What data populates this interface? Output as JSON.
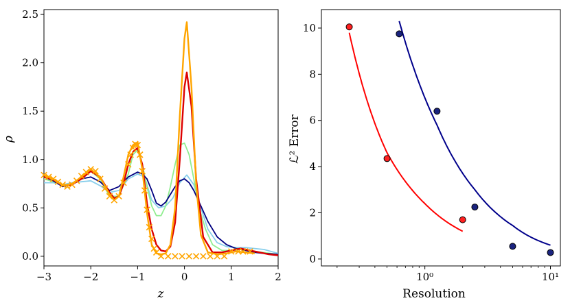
{
  "chart_data": [
    {
      "type": "line",
      "xlabel": "z",
      "ylabel": "ρ",
      "xlim": [
        -3,
        2
      ],
      "ylim": [
        -0.1,
        2.55
      ],
      "xticks": [
        "−3",
        "−2",
        "−1",
        "0",
        "1",
        "2"
      ],
      "yticks": [
        "0.0",
        "0.5",
        "1.0",
        "1.5",
        "2.0",
        "2.5"
      ],
      "xtick_values": [
        -3,
        -2,
        -1,
        0,
        1,
        2
      ],
      "ytick_values": [
        0.0,
        0.5,
        1.0,
        1.5,
        2.0,
        2.5
      ],
      "series": [
        {
          "name": "light-blue",
          "color": "#87ceeb",
          "x": [
            -3,
            -2.8,
            -2.6,
            -2.4,
            -2.2,
            -2.0,
            -1.8,
            -1.6,
            -1.4,
            -1.2,
            -1.0,
            -0.85,
            -0.7,
            -0.55,
            -0.4,
            -0.25,
            -0.1,
            0.05,
            0.2,
            0.35,
            0.5,
            0.7,
            0.9,
            1.1,
            1.3,
            1.5,
            1.7,
            2.0
          ],
          "y": [
            0.76,
            0.76,
            0.74,
            0.76,
            0.77,
            0.78,
            0.73,
            0.66,
            0.68,
            0.8,
            0.85,
            0.82,
            0.58,
            0.5,
            0.52,
            0.6,
            0.76,
            0.84,
            0.74,
            0.5,
            0.28,
            0.14,
            0.1,
            0.09,
            0.09,
            0.08,
            0.07,
            0.03
          ]
        },
        {
          "name": "light-green",
          "color": "#90ee90",
          "x": [
            -3,
            -2.8,
            -2.6,
            -2.4,
            -2.2,
            -2.0,
            -1.8,
            -1.6,
            -1.4,
            -1.2,
            -1.1,
            -1.0,
            -0.9,
            -0.8,
            -0.7,
            -0.6,
            -0.5,
            -0.4,
            -0.3,
            -0.2,
            -0.1,
            0.0,
            0.1,
            0.2,
            0.3,
            0.45,
            0.6,
            0.8,
            1.0,
            1.2,
            1.5,
            2.0
          ],
          "y": [
            0.8,
            0.77,
            0.73,
            0.75,
            0.82,
            0.88,
            0.8,
            0.62,
            0.62,
            0.85,
            1.05,
            1.1,
            0.95,
            0.72,
            0.52,
            0.42,
            0.42,
            0.52,
            0.72,
            0.95,
            1.15,
            1.17,
            1.05,
            0.8,
            0.52,
            0.28,
            0.12,
            0.06,
            0.06,
            0.07,
            0.05,
            0.02
          ]
        },
        {
          "name": "navy",
          "color": "#000080",
          "x": [
            -3,
            -2.8,
            -2.6,
            -2.4,
            -2.2,
            -2.0,
            -1.8,
            -1.6,
            -1.4,
            -1.2,
            -1.0,
            -0.9,
            -0.8,
            -0.7,
            -0.6,
            -0.5,
            -0.4,
            -0.3,
            -0.2,
            -0.1,
            0.0,
            0.1,
            0.2,
            0.35,
            0.5,
            0.7,
            0.9,
            1.1,
            1.3,
            1.5,
            1.7,
            2.0
          ],
          "y": [
            0.82,
            0.78,
            0.72,
            0.74,
            0.8,
            0.82,
            0.77,
            0.68,
            0.72,
            0.82,
            0.87,
            0.85,
            0.8,
            0.68,
            0.55,
            0.52,
            0.56,
            0.64,
            0.72,
            0.78,
            0.8,
            0.76,
            0.68,
            0.52,
            0.36,
            0.2,
            0.12,
            0.08,
            0.06,
            0.04,
            0.03,
            0.02
          ]
        },
        {
          "name": "red",
          "color": "#dd0000",
          "x": [
            -3,
            -2.8,
            -2.6,
            -2.4,
            -2.2,
            -2.0,
            -1.8,
            -1.6,
            -1.5,
            -1.4,
            -1.3,
            -1.2,
            -1.1,
            -1.0,
            -0.9,
            -0.8,
            -0.7,
            -0.6,
            -0.5,
            -0.4,
            -0.3,
            -0.2,
            -0.1,
            0.0,
            0.05,
            0.15,
            0.25,
            0.4,
            0.6,
            0.8,
            1.0,
            1.2,
            1.4,
            1.6,
            1.8,
            2.0
          ],
          "y": [
            0.82,
            0.79,
            0.73,
            0.74,
            0.8,
            0.88,
            0.82,
            0.66,
            0.6,
            0.62,
            0.75,
            0.95,
            1.08,
            1.12,
            0.95,
            0.55,
            0.28,
            0.12,
            0.06,
            0.05,
            0.1,
            0.35,
            1.0,
            1.75,
            1.9,
            1.55,
            0.8,
            0.2,
            0.04,
            0.04,
            0.06,
            0.08,
            0.06,
            0.04,
            0.02,
            0.01
          ]
        },
        {
          "name": "orange",
          "color": "#ffa500",
          "x": [
            -3,
            -2.8,
            -2.6,
            -2.4,
            -2.2,
            -2.0,
            -1.8,
            -1.6,
            -1.5,
            -1.4,
            -1.3,
            -1.2,
            -1.1,
            -1.0,
            -0.9,
            -0.8,
            -0.7,
            -0.6,
            -0.5,
            -0.4,
            -0.3,
            -0.2,
            -0.1,
            0.0,
            0.05,
            0.15,
            0.25,
            0.35,
            0.5,
            0.7,
            0.9,
            1.1,
            1.3,
            1.5
          ],
          "y": [
            0.84,
            0.8,
            0.73,
            0.75,
            0.82,
            0.9,
            0.82,
            0.64,
            0.58,
            0.62,
            0.82,
            1.05,
            1.15,
            1.18,
            0.9,
            0.45,
            0.12,
            0.03,
            0.02,
            0.03,
            0.12,
            0.5,
            1.45,
            2.25,
            2.42,
            1.75,
            0.75,
            0.22,
            0.04,
            0.02,
            0.03,
            0.05,
            0.04,
            0.03
          ]
        },
        {
          "name": "orange-x-markers",
          "color": "#ffa500",
          "marker": "x",
          "x": [
            -3.0,
            -2.9,
            -2.8,
            -2.7,
            -2.6,
            -2.5,
            -2.4,
            -2.3,
            -2.2,
            -2.1,
            -2.0,
            -1.9,
            -1.8,
            -1.7,
            -1.6,
            -1.5,
            -1.4,
            -1.3,
            -1.2,
            -1.15,
            -1.1,
            -1.05,
            -1.0,
            -0.95,
            -0.9,
            -0.85,
            -0.8,
            -0.75,
            -0.7,
            -0.65,
            -0.6,
            -0.5,
            -0.35,
            -0.2,
            -0.05,
            0.1,
            0.25,
            0.4,
            0.55,
            0.7,
            0.85,
            1.0,
            1.15,
            1.25,
            1.4
          ],
          "y": [
            0.84,
            0.82,
            0.8,
            0.77,
            0.74,
            0.72,
            0.74,
            0.78,
            0.83,
            0.87,
            0.9,
            0.88,
            0.8,
            0.7,
            0.62,
            0.58,
            0.62,
            0.76,
            0.95,
            1.05,
            1.12,
            1.16,
            1.15,
            1.05,
            0.88,
            0.68,
            0.48,
            0.3,
            0.18,
            0.08,
            0.04,
            0.0,
            0.0,
            0.0,
            0.0,
            0.0,
            0.0,
            0.0,
            0.0,
            0.0,
            0.0,
            0.05,
            0.05,
            0.05,
            0.05
          ]
        }
      ]
    },
    {
      "type": "scatter",
      "xscale": "log",
      "xlabel": "Resolution",
      "ylabel": "ℒ² Error",
      "xlim": [
        0.15,
        12
      ],
      "ylim": [
        -0.3,
        10.8
      ],
      "xticks": [
        "10⁰",
        "10¹"
      ],
      "xtick_values": [
        1,
        10
      ],
      "yticks": [
        "0",
        "2",
        "4",
        "6",
        "8",
        "10"
      ],
      "ytick_values": [
        0,
        2,
        4,
        6,
        8,
        10
      ],
      "series": [
        {
          "name": "red-points",
          "color": "#ff2020",
          "x": [
            0.25,
            0.5,
            2.0
          ],
          "y": [
            10.05,
            4.35,
            1.7
          ]
        },
        {
          "name": "navy-points",
          "color": "#1a237e",
          "x": [
            0.625,
            1.25,
            2.5,
            5.0,
            10.0
          ],
          "y": [
            9.75,
            6.4,
            2.25,
            0.55,
            0.28
          ]
        }
      ],
      "fits": [
        {
          "name": "red-fit",
          "color": "#ff0000",
          "x_range": [
            0.25,
            2.0
          ],
          "y_at": [
            [
              0.25,
              9.8
            ],
            [
              0.5,
              4.6
            ],
            [
              1.0,
              2.4
            ],
            [
              2.0,
              1.2
            ]
          ]
        },
        {
          "name": "navy-fit",
          "color": "#00008b",
          "x_range": [
            0.625,
            10.0
          ],
          "y_at": [
            [
              0.625,
              10.3
            ],
            [
              1.25,
              5.8
            ],
            [
              2.5,
              3.0
            ],
            [
              5.0,
              1.45
            ],
            [
              10.0,
              0.6
            ]
          ]
        }
      ]
    }
  ]
}
